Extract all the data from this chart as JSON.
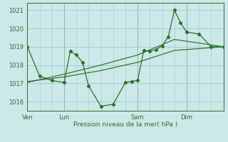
{
  "xlabel": "Pression niveau de la mer( hPa )",
  "background_color": "#cce8e8",
  "grid_color": "#99cccc",
  "line_color": "#2d6e2d",
  "ylim": [
    1015.5,
    1021.4
  ],
  "yticks": [
    1016,
    1017,
    1018,
    1019,
    1020,
    1021
  ],
  "day_labels": [
    "Ven",
    "Lun",
    "Sam",
    "Dim"
  ],
  "day_positions": [
    0,
    6,
    18,
    26
  ],
  "xmin": 0,
  "xmax": 32,
  "series1_x": [
    0,
    2,
    4,
    6,
    7,
    8,
    9,
    10,
    12,
    14,
    16,
    17,
    18,
    19,
    20,
    21,
    22,
    23,
    24,
    25,
    26,
    28,
    30,
    32
  ],
  "series1_y": [
    1019.0,
    1017.4,
    1017.15,
    1017.05,
    1018.75,
    1018.55,
    1018.15,
    1016.85,
    1015.75,
    1015.85,
    1017.05,
    1017.1,
    1017.15,
    1018.8,
    1018.75,
    1018.85,
    1019.05,
    1019.55,
    1021.0,
    1020.3,
    1019.8,
    1019.7,
    1019.0,
    1019.0
  ],
  "series2_x": [
    0,
    6,
    12,
    18,
    24,
    32
  ],
  "series2_y": [
    1017.1,
    1017.35,
    1017.7,
    1018.15,
    1018.8,
    1019.0
  ],
  "series3_x": [
    0,
    6,
    12,
    18,
    24,
    32
  ],
  "series3_y": [
    1017.05,
    1017.5,
    1018.0,
    1018.55,
    1019.4,
    1019.0
  ]
}
